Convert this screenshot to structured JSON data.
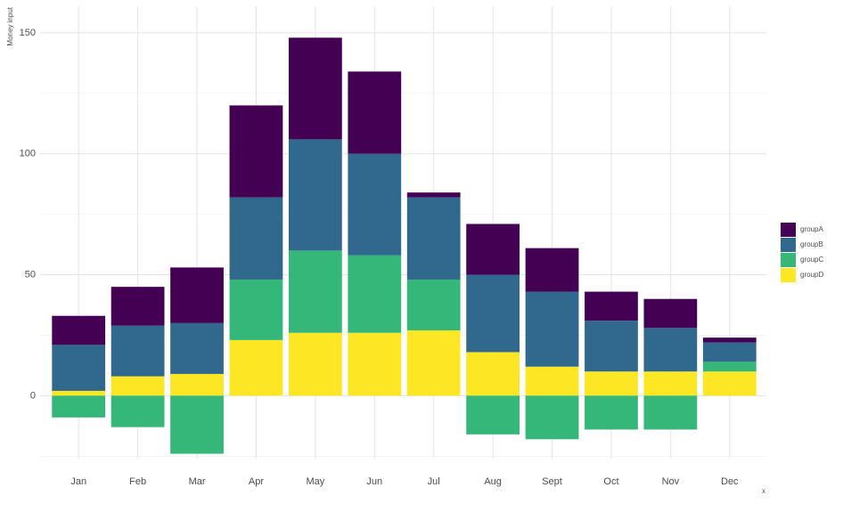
{
  "chart_data": {
    "type": "stacked_bar",
    "categories": [
      "Jan",
      "Feb",
      "Mar",
      "Apr",
      "May",
      "Jun",
      "Jul",
      "Aug",
      "Sept",
      "Oct",
      "Nov",
      "Dec"
    ],
    "series": [
      {
        "name": "groupA",
        "color": "#440154",
        "values": [
          12,
          16,
          23,
          38,
          42,
          34,
          2,
          21,
          18,
          12,
          12,
          2
        ]
      },
      {
        "name": "groupB",
        "color": "#31688e",
        "values": [
          19,
          21,
          21,
          34,
          46,
          42,
          34,
          32,
          31,
          21,
          18,
          8
        ]
      },
      {
        "name": "groupC",
        "color": "#35b779",
        "values": [
          -9,
          -13,
          -24,
          25,
          34,
          32,
          21,
          -16,
          -18,
          -14,
          -14,
          4
        ]
      },
      {
        "name": "groupD",
        "color": "#fde725",
        "values": [
          2,
          8,
          9,
          23,
          26,
          26,
          27,
          18,
          12,
          10,
          10,
          10
        ]
      }
    ],
    "ylim": [
      -26,
      161
    ],
    "yticks": [
      0,
      50,
      100,
      150
    ],
    "minor_yticks": [
      -25,
      25,
      75,
      125
    ],
    "ylabel": "Money input",
    "xlabel": "x",
    "grid": true,
    "legend": "right"
  }
}
